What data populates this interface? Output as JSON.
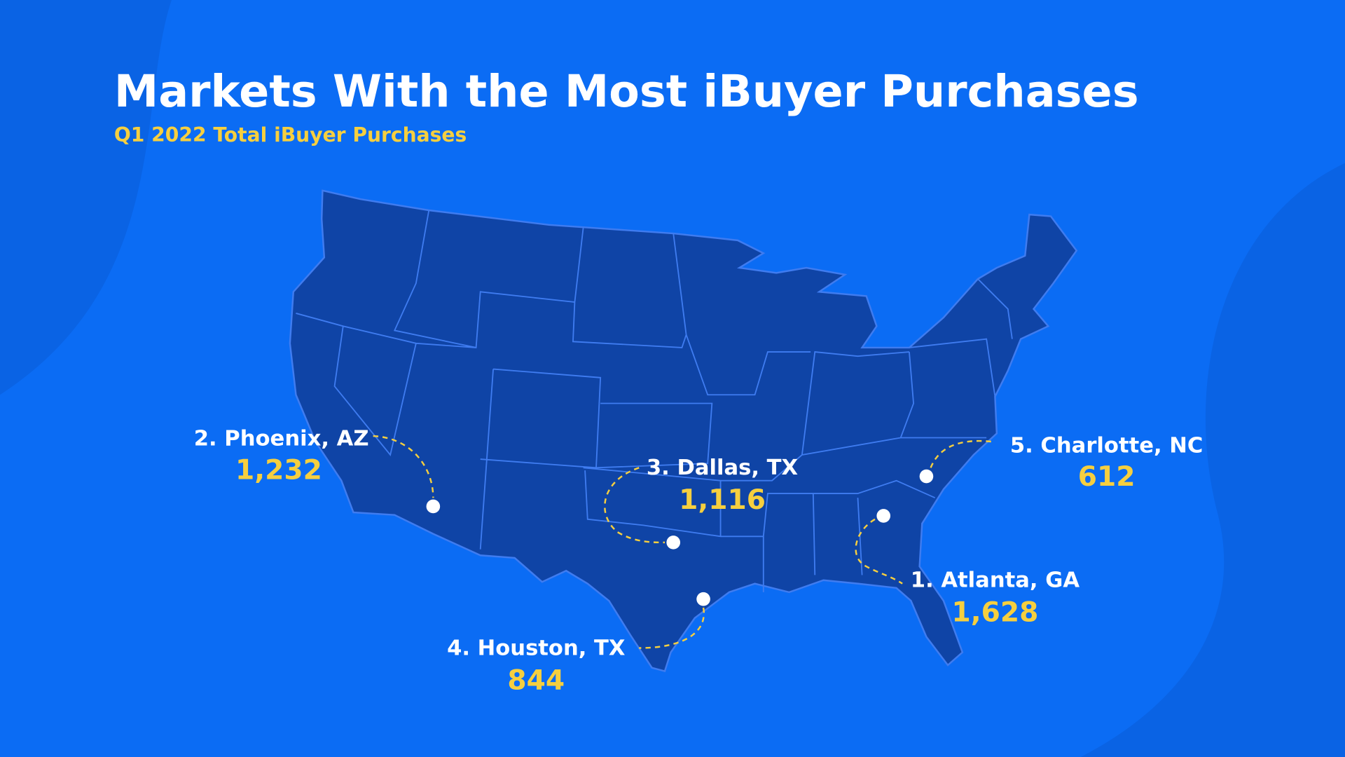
{
  "header": {
    "title": "Markets With the Most iBuyer Purchases",
    "subtitle": "Q1 2022 Total iBuyer Purchases"
  },
  "markets": [
    {
      "label": "1. Atlanta, GA",
      "value": "1,628"
    },
    {
      "label": "2. Phoenix, AZ",
      "value": "1,232"
    },
    {
      "label": "3. Dallas, TX",
      "value": "1,116"
    },
    {
      "label": "4. Houston, TX",
      "value": "844"
    },
    {
      "label": "5. Charlotte, NC",
      "value": "612"
    }
  ]
}
